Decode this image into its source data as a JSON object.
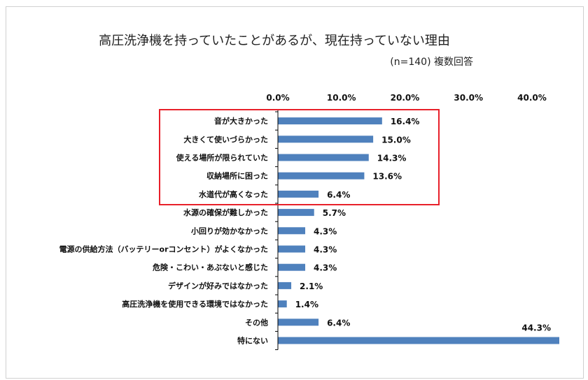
{
  "chart_data": {
    "type": "bar",
    "orientation": "horizontal",
    "title": "高圧洗浄機を持っていたことがあるが、現在持っていない理由",
    "subtitle": "(n=140) 複数回答",
    "xlim": [
      0,
      44.3
    ],
    "xticks": [
      0,
      10,
      20,
      30,
      40
    ],
    "xtick_labels": [
      "0.0%",
      "10.0%",
      "20.0%",
      "30.0%",
      "40.0%"
    ],
    "axis_position": "top",
    "categories": [
      "音が大きかった",
      "大きくて使いづらかった",
      "使える場所が限られていた",
      "収納場所に困った",
      "水道代が高くなった",
      "水源の確保が難しかった",
      "小回りが効かなかった",
      "電源の供給方法（バッテリーorコンセント）がよくなかった",
      "危険・こわい・あぶないと感じた",
      "デザインが好みではなかった",
      "高圧洗浄機を使用できる環境ではなかった",
      "その他",
      "特にない"
    ],
    "values": [
      16.4,
      15.0,
      14.3,
      13.6,
      6.4,
      5.7,
      4.3,
      4.3,
      4.3,
      2.1,
      1.4,
      6.4,
      44.3
    ],
    "value_labels": [
      "16.4%",
      "15.0%",
      "14.3%",
      "13.6%",
      "6.4%",
      "5.7%",
      "4.3%",
      "4.3%",
      "4.3%",
      "2.1%",
      "1.4%",
      "6.4%",
      "44.3%"
    ],
    "highlighted_categories": [
      0,
      1,
      2,
      3,
      4
    ],
    "colors": {
      "bar": "#4f81bd",
      "highlight_box": "#e8202a",
      "axis": "#000000"
    }
  }
}
